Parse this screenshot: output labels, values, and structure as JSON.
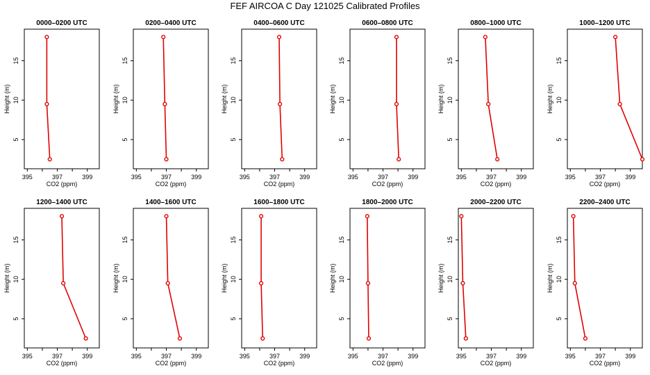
{
  "figure": {
    "title": "FEF AIRCOA C  Day 121025  Calibrated Profiles"
  },
  "chart_data": {
    "type": "line",
    "series_color": "#e00000",
    "xlabel": "CO2 (ppm)",
    "ylabel": "Height (m)",
    "xlim": [
      394.8,
      399.8
    ],
    "ylim": [
      1.3,
      19.0
    ],
    "xticks": [
      395,
      397,
      399
    ],
    "yticks": [
      5,
      10,
      15
    ],
    "heights": [
      2.5,
      9.5,
      18.0
    ],
    "panels": [
      {
        "title": "0000–0200 UTC",
        "co2": [
          396.5,
          396.3,
          396.3
        ]
      },
      {
        "title": "0200–0400 UTC",
        "co2": [
          397.0,
          396.9,
          396.8
        ]
      },
      {
        "title": "0400–0600 UTC",
        "co2": [
          397.5,
          397.35,
          397.3
        ]
      },
      {
        "title": "0600–0800 UTC",
        "co2": [
          398.05,
          397.9,
          397.9
        ]
      },
      {
        "title": "0800–1000 UTC",
        "co2": [
          397.4,
          396.8,
          396.6
        ]
      },
      {
        "title": "1000–1200 UTC",
        "co2": [
          399.8,
          398.3,
          398.0
        ]
      },
      {
        "title": "1200–1400 UTC",
        "co2": [
          398.9,
          397.4,
          397.3
        ]
      },
      {
        "title": "1400–1600 UTC",
        "co2": [
          397.9,
          397.1,
          397.0
        ]
      },
      {
        "title": "1600–1800 UTC",
        "co2": [
          396.2,
          396.1,
          396.1
        ]
      },
      {
        "title": "1800–2000 UTC",
        "co2": [
          396.05,
          396.0,
          395.95
        ]
      },
      {
        "title": "2000–2200 UTC",
        "co2": [
          395.3,
          395.1,
          395.0
        ]
      },
      {
        "title": "2200–2400 UTC",
        "co2": [
          396.0,
          395.3,
          395.2
        ]
      }
    ]
  }
}
